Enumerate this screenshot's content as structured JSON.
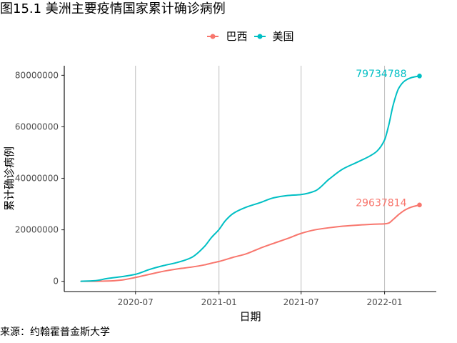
{
  "chart_data": {
    "type": "line",
    "title": "图15.1 美洲主要疫情国家累计确诊病例",
    "xlabel": "日期",
    "ylabel": "累计确诊病例",
    "caption": "来源：约翰霍普金斯大学",
    "x_ticks": [
      "2020-07",
      "2021-01",
      "2021-07",
      "2022-01"
    ],
    "y_ticks": [
      0,
      20000000,
      40000000,
      60000000,
      80000000
    ],
    "xlim": [
      "2020-01-26",
      "2022-04-25"
    ],
    "ylim": [
      -3990000,
      83720000
    ],
    "grid": {
      "vertical_major": true,
      "horizontal": false
    },
    "legend": {
      "position": "top"
    },
    "x": [
      "2020-03-03",
      "2020-04-01",
      "2020-05-01",
      "2020-06-01",
      "2020-07-01",
      "2020-08-01",
      "2020-09-01",
      "2020-10-01",
      "2020-11-01",
      "2020-12-01",
      "2020-12-15",
      "2021-01-01",
      "2021-01-15",
      "2021-02-01",
      "2021-03-01",
      "2021-04-01",
      "2021-05-01",
      "2021-06-01",
      "2021-07-01",
      "2021-08-01",
      "2021-09-01",
      "2021-10-01",
      "2021-11-01",
      "2021-12-01",
      "2021-12-15",
      "2022-01-01",
      "2022-01-10",
      "2022-01-20",
      "2022-02-01",
      "2022-02-15",
      "2022-03-01",
      "2022-03-19"
    ],
    "series": [
      {
        "name": "巴西",
        "color": "#F8766D",
        "end_label": "29637814",
        "values": [
          0,
          0,
          100000,
          500000,
          1500000,
          2700000,
          3900000,
          4800000,
          5500000,
          6400000,
          7000000,
          7700000,
          8400000,
          9300000,
          10600000,
          12800000,
          14700000,
          16600000,
          18600000,
          20000000,
          20800000,
          21400000,
          21800000,
          22100000,
          22200000,
          22300000,
          22600000,
          24000000,
          25900000,
          27700000,
          28800000,
          29637814
        ]
      },
      {
        "name": "美国",
        "color": "#00BFC4",
        "end_label": "79734788",
        "values": [
          0,
          200000,
          1100000,
          1800000,
          2700000,
          4600000,
          6100000,
          7300000,
          9200000,
          13700000,
          16900000,
          20100000,
          23500000,
          26300000,
          28700000,
          30500000,
          32400000,
          33300000,
          33700000,
          35100000,
          39700000,
          43600000,
          46200000,
          48800000,
          50500000,
          54900000,
          60500000,
          68500000,
          74900000,
          77900000,
          79100000,
          79734788
        ]
      }
    ]
  }
}
